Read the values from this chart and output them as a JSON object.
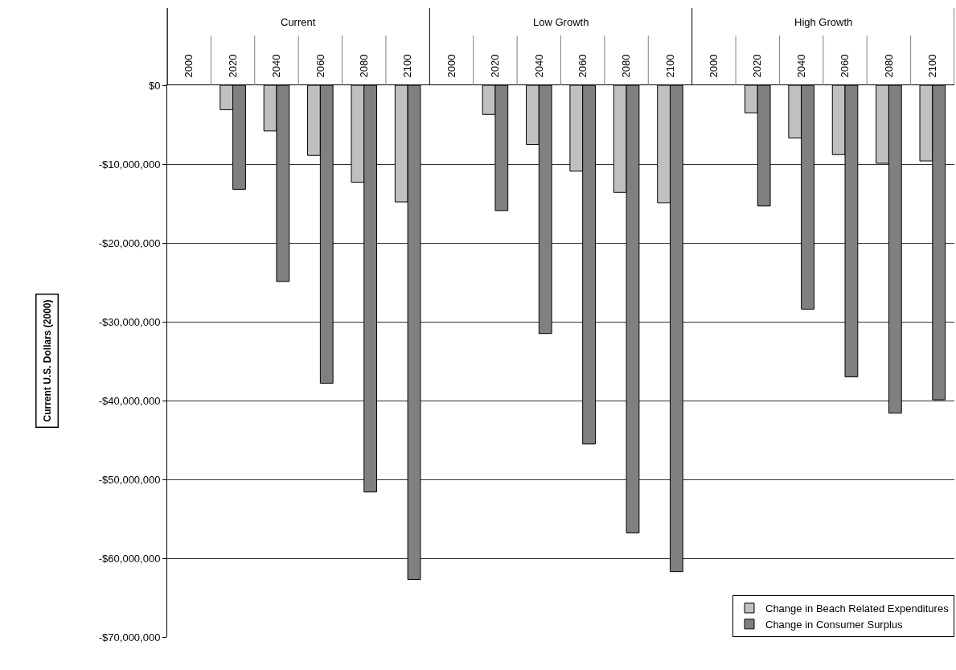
{
  "chart_data": {
    "type": "bar",
    "ylabel": "Current U.S. Dollars (2000)",
    "categories": [
      "2000",
      "2020",
      "2040",
      "2060",
      "2080",
      "2100",
      "2000",
      "2020",
      "2040",
      "2060",
      "2080",
      "2100",
      "2000",
      "2020",
      "2040",
      "2060",
      "2080",
      "2100"
    ],
    "annotations": [
      "Current",
      "Low Growth",
      "High Growth"
    ],
    "series": [
      {
        "name": "Change in Beach Related Expenditures",
        "color": "#c0c0c0",
        "values": [
          null,
          -3100000,
          -5800000,
          -8900000,
          -12300000,
          -14800000,
          null,
          -3700000,
          -7500000,
          -10900000,
          -13600000,
          -14900000,
          null,
          -3500000,
          -6700000,
          -8800000,
          -9900000,
          -9600000
        ]
      },
      {
        "name": "Change in Consumer Surplus",
        "color": "#808080",
        "values": [
          null,
          -13200000,
          -24900000,
          -37800000,
          -51600000,
          -62700000,
          null,
          -15900000,
          -31500000,
          -45500000,
          -56800000,
          -61700000,
          null,
          -15300000,
          -28400000,
          -37000000,
          -41600000,
          -39900000
        ]
      }
    ],
    "ylim": [
      -70000000,
      0
    ],
    "yticks": [
      {
        "value": 0,
        "label": "$0"
      },
      {
        "value": -10000000,
        "label": "-$10,000,000"
      },
      {
        "value": -20000000,
        "label": "-$20,000,000"
      },
      {
        "value": -30000000,
        "label": "-$30,000,000"
      },
      {
        "value": -40000000,
        "label": "-$40,000,000"
      },
      {
        "value": -50000000,
        "label": "-$50,000,000"
      },
      {
        "value": -60000000,
        "label": "-$60,000,000"
      },
      {
        "value": -70000000,
        "label": "-$70,000,000"
      }
    ],
    "grid": "y",
    "legend": "bottom right"
  }
}
